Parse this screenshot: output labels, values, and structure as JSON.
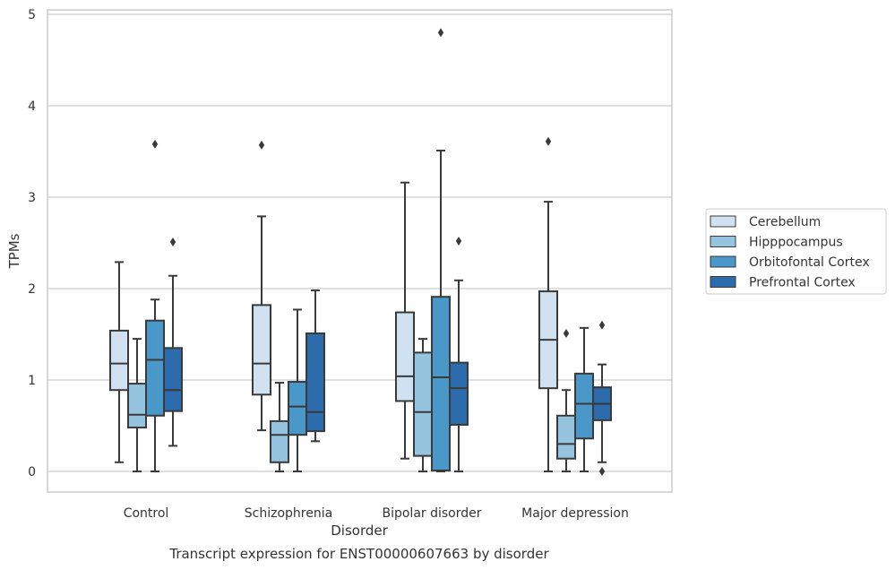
{
  "chart_data": {
    "type": "box",
    "title": "",
    "xlabel": "Disorder",
    "ylabel": "TPMs",
    "caption": "Transcript expression for ENST00000607663 by disorder",
    "ylim": [
      -0.22,
      5.05
    ],
    "y_ticks": [
      "0",
      "1",
      "2",
      "3",
      "4",
      "5"
    ],
    "categories": [
      "Control",
      "Schizophrenia",
      "Bipolar disorder",
      "Major depression"
    ],
    "grid": true,
    "legend_position": "right",
    "series": [
      {
        "name": "Cerebellum",
        "color": "#d0e1f2",
        "boxes": [
          {
            "q1": 0.89,
            "median": 1.18,
            "q3": 1.54,
            "whisker_low": 0.1,
            "whisker_high": 2.29,
            "outliers": []
          },
          {
            "q1": 0.84,
            "median": 1.18,
            "q3": 1.82,
            "whisker_low": 0.45,
            "whisker_high": 2.79,
            "outliers": [
              3.57
            ]
          },
          {
            "q1": 0.77,
            "median": 1.04,
            "q3": 1.74,
            "whisker_low": 0.14,
            "whisker_high": 3.16,
            "outliers": []
          },
          {
            "q1": 0.91,
            "median": 1.44,
            "q3": 1.97,
            "whisker_low": 0.0,
            "whisker_high": 2.95,
            "outliers": [
              3.61
            ]
          }
        ]
      },
      {
        "name": "Hipppocampus",
        "color": "#94c4df",
        "boxes": [
          {
            "q1": 0.48,
            "median": 0.62,
            "q3": 0.96,
            "whisker_low": 0.0,
            "whisker_high": 1.45,
            "outliers": []
          },
          {
            "q1": 0.1,
            "median": 0.4,
            "q3": 0.55,
            "whisker_low": 0.0,
            "whisker_high": 0.97,
            "outliers": []
          },
          {
            "q1": 0.17,
            "median": 0.65,
            "q3": 1.3,
            "whisker_low": 0.0,
            "whisker_high": 1.45,
            "outliers": []
          },
          {
            "q1": 0.14,
            "median": 0.3,
            "q3": 0.61,
            "whisker_low": 0.0,
            "whisker_high": 0.89,
            "outliers": [
              1.51
            ]
          }
        ]
      },
      {
        "name": "Orbitofontal Cortex",
        "color": "#4a98c9",
        "boxes": [
          {
            "q1": 0.61,
            "median": 1.22,
            "q3": 1.65,
            "whisker_low": 0.0,
            "whisker_high": 1.88,
            "outliers": [
              3.58
            ]
          },
          {
            "q1": 0.4,
            "median": 0.71,
            "q3": 0.98,
            "whisker_low": 0.0,
            "whisker_high": 1.77,
            "outliers": []
          },
          {
            "q1": 0.01,
            "median": 1.03,
            "q3": 1.91,
            "whisker_low": 0.0,
            "whisker_high": 3.51,
            "outliers": [
              4.8
            ]
          },
          {
            "q1": 0.36,
            "median": 0.74,
            "q3": 1.07,
            "whisker_low": 0.0,
            "whisker_high": 1.57,
            "outliers": []
          }
        ]
      },
      {
        "name": "Prefrontal Cortex",
        "color": "#2c6bac",
        "boxes": [
          {
            "q1": 0.66,
            "median": 0.89,
            "q3": 1.35,
            "whisker_low": 0.28,
            "whisker_high": 2.14,
            "outliers": [
              2.51
            ]
          },
          {
            "q1": 0.44,
            "median": 0.65,
            "q3": 1.51,
            "whisker_low": 0.33,
            "whisker_high": 1.98,
            "outliers": []
          },
          {
            "q1": 0.51,
            "median": 0.91,
            "q3": 1.19,
            "whisker_low": 0.0,
            "whisker_high": 2.09,
            "outliers": [
              2.52
            ]
          },
          {
            "q1": 0.56,
            "median": 0.74,
            "q3": 0.92,
            "whisker_low": 0.1,
            "whisker_high": 1.17,
            "outliers": [
              0.0,
              1.6
            ]
          }
        ]
      }
    ]
  }
}
